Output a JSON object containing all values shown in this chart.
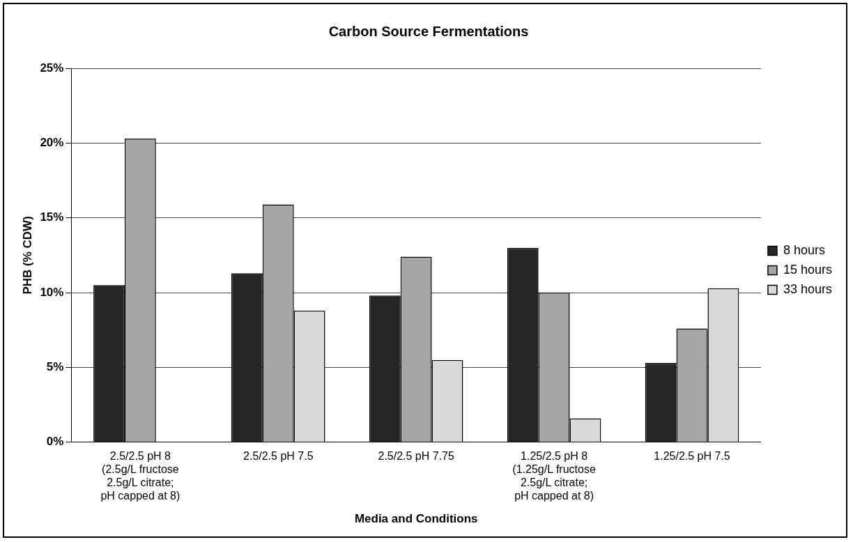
{
  "chart_data": {
    "type": "bar",
    "title": "Carbon Source Fermentations",
    "xlabel": "Media and Conditions",
    "ylabel": "PHB (% CDW)",
    "categories": [
      "2.5/2.5 pH 8\n(2.5g/L fructose\n2.5g/L citrate;\npH capped at 8)",
      "2.5/2.5 pH 7.5",
      "2.5/2.5 pH 7.75",
      "1.25/2.5 pH 8\n(1.25g/L fructose\n2.5g/L citrate;\npH capped at 8)",
      "1.25/2.5 pH 7.5"
    ],
    "series": [
      {
        "name": "8 hours",
        "color": "#262626",
        "values": [
          10.5,
          11.3,
          9.8,
          13.0,
          5.3
        ]
      },
      {
        "name": "15 hours",
        "color": "#a6a6a6",
        "values": [
          20.3,
          15.9,
          12.4,
          10.0,
          7.6
        ]
      },
      {
        "name": "33 hours",
        "color": "#d9d9d9",
        "values": [
          null,
          8.8,
          5.5,
          1.6,
          10.3
        ]
      }
    ],
    "ylim": [
      0,
      25
    ],
    "yticks": [
      {
        "value": 0,
        "label": "0%"
      },
      {
        "value": 5,
        "label": "5%"
      },
      {
        "value": 10,
        "label": "10%"
      },
      {
        "value": 15,
        "label": "15%"
      },
      {
        "value": 20,
        "label": "20%"
      },
      {
        "value": 25,
        "label": "25%"
      }
    ],
    "grid": "y",
    "legend": "right"
  }
}
